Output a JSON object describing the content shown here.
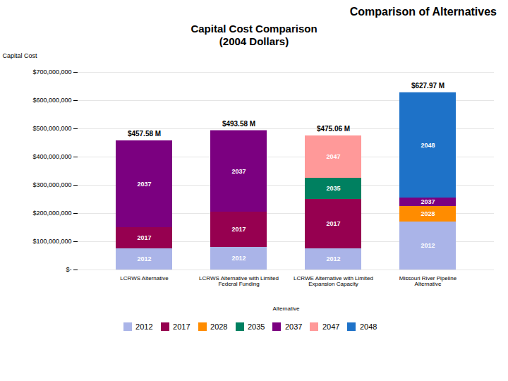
{
  "chart_data": {
    "type": "bar",
    "stacked": true,
    "header": "Comparison of Alternatives",
    "title": "Capital Cost Comparison\n(2004 Dollars)",
    "xlabel": "Alternative",
    "ylabel": "Capital Cost",
    "categories": [
      "LCRWS Alternative",
      "LCRWS Alternative with Limited\nFederal Funding",
      "LCRWE Alternative with Limited\nExpansion Capacity",
      "Missouri River Pipeline\nAlternative"
    ],
    "series": [
      {
        "name": "2012",
        "color": "#aab4e8",
        "values": [
          75000000,
          80000000,
          75000000,
          170000000
        ]
      },
      {
        "name": "2017",
        "color": "#960050",
        "values": [
          75000000,
          125000000,
          175000000,
          0
        ]
      },
      {
        "name": "2028",
        "color": "#ff8c00",
        "values": [
          0,
          0,
          0,
          55000000
        ]
      },
      {
        "name": "2035",
        "color": "#008060",
        "values": [
          0,
          0,
          75000000,
          0
        ]
      },
      {
        "name": "2037",
        "color": "#7b0080",
        "values": [
          307580000,
          288580000,
          0,
          30000000
        ]
      },
      {
        "name": "2047",
        "color": "#ff9999",
        "values": [
          0,
          0,
          150060000,
          0
        ]
      },
      {
        "name": "2048",
        "color": "#1e72c8",
        "values": [
          0,
          0,
          0,
          372970000
        ]
      }
    ],
    "totals": [
      457580000,
      493580000,
      475060000,
      627970000
    ],
    "total_labels": [
      "$457.58 M",
      "$493.58 M",
      "$475.06 M",
      "$627.97 M"
    ],
    "ylim": [
      0,
      700000000
    ],
    "yticks": [
      {
        "value": 0,
        "label": "$-"
      },
      {
        "value": 100000000,
        "label": "$100,000,000"
      },
      {
        "value": 200000000,
        "label": "$200,000,000"
      },
      {
        "value": 300000000,
        "label": "$300,000,000"
      },
      {
        "value": 400000000,
        "label": "$400,000,000"
      },
      {
        "value": 500000000,
        "label": "$500,000,000"
      },
      {
        "value": 600000000,
        "label": "$600,000,000"
      },
      {
        "value": 700000000,
        "label": "$700,000,000"
      }
    ],
    "grid": true,
    "legend": "bottom"
  }
}
